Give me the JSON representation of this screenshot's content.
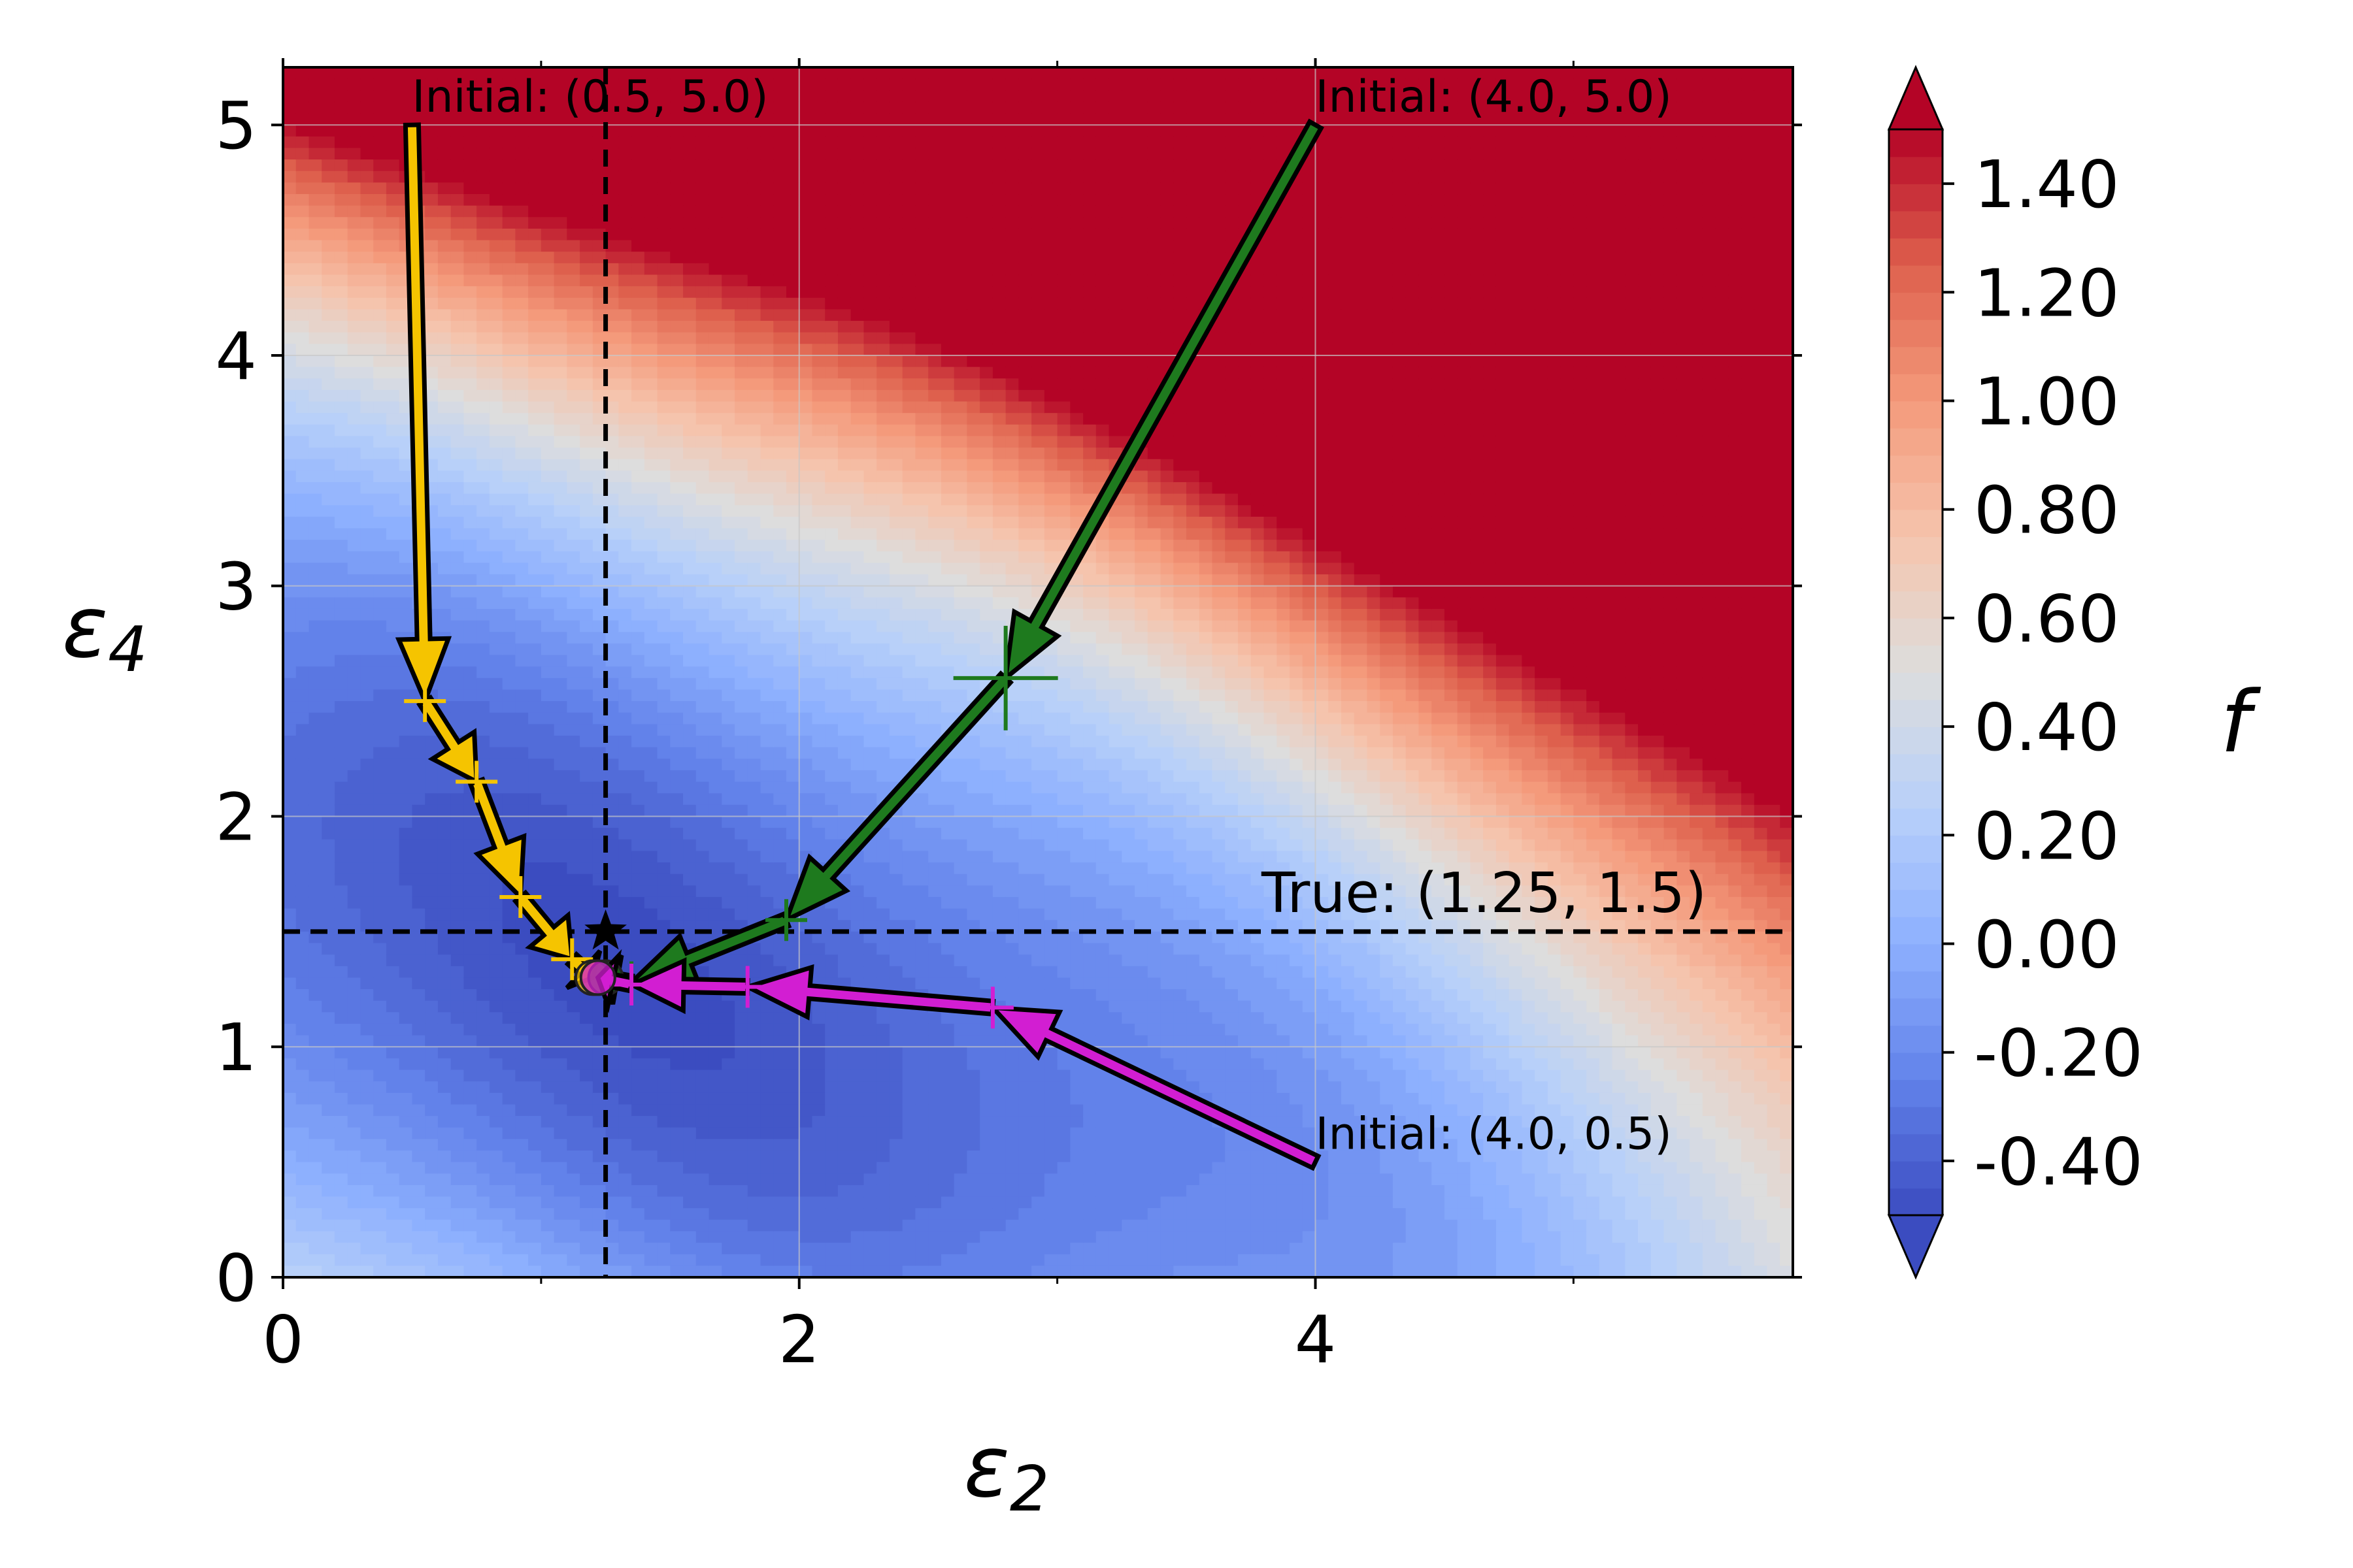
{
  "chart_data": {
    "type": "contour",
    "xlabel": "ε",
    "xlabel_sub": "2",
    "ylabel": "ε",
    "ylabel_sub": "4",
    "xlim": [
      0,
      5.85
    ],
    "ylim": [
      0,
      5.25
    ],
    "x_ticks": [
      0,
      2,
      4
    ],
    "y_ticks": [
      0,
      1,
      2,
      3,
      4,
      5
    ],
    "grid": true,
    "colormap": "coolwarm",
    "colorbar": {
      "label": "f",
      "range": [
        -0.5,
        1.5
      ],
      "ticks": [
        -0.4,
        -0.2,
        0.0,
        0.2,
        0.4,
        0.6,
        0.8,
        1.0,
        1.2,
        1.4
      ],
      "tick_labels": [
        "-0.40",
        "-0.20",
        "0.00",
        "0.20",
        "0.40",
        "0.60",
        "0.80",
        "1.00",
        "1.20",
        "1.40"
      ],
      "extend": "both"
    },
    "true_point": {
      "x": 1.25,
      "y": 1.5,
      "label": "True: (1.25, 1.5)"
    },
    "trajectories": [
      {
        "color": "#f5c400",
        "label": "Initial: (0.5, 5.0)",
        "points": [
          [
            0.5,
            5.0
          ],
          [
            0.55,
            2.5
          ],
          [
            0.75,
            2.15
          ],
          [
            0.92,
            1.65
          ],
          [
            1.12,
            1.38
          ],
          [
            1.2,
            1.3
          ]
        ]
      },
      {
        "color": "#1e7a1e",
        "label": "Initial: (4.0, 5.0)",
        "points": [
          [
            4.0,
            5.0
          ],
          [
            2.8,
            2.6
          ],
          [
            1.95,
            1.55
          ],
          [
            1.35,
            1.28
          ],
          [
            1.25,
            1.3
          ]
        ]
      },
      {
        "color": "#d21ed2",
        "label": "Initial: (4.0, 0.5)",
        "points": [
          [
            4.0,
            0.5
          ],
          [
            2.75,
            1.17
          ],
          [
            1.8,
            1.26
          ],
          [
            1.35,
            1.27
          ],
          [
            1.22,
            1.3
          ]
        ]
      }
    ]
  }
}
